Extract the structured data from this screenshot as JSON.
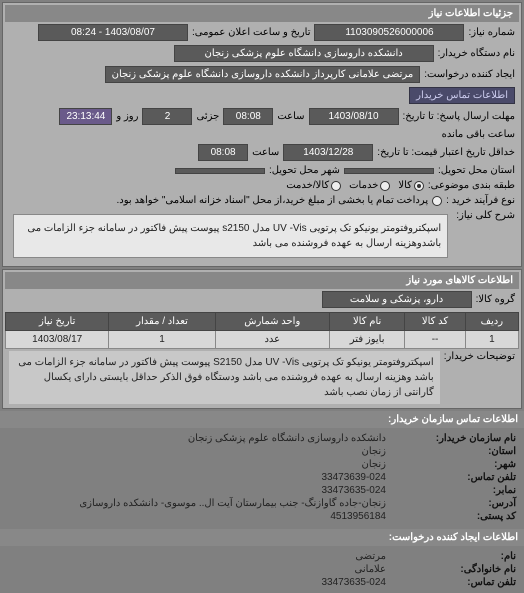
{
  "panel1": {
    "title": "جزئیات اطلاعات نیاز",
    "request_no_label": "شماره نیاز:",
    "request_no": "1103090526000006",
    "announce_label": "تاریخ و ساعت اعلان عمومی:",
    "announce_value": "1403/08/07 - 08:24",
    "buyer_name_label": "نام دستگاه خریدار:",
    "buyer_name": "دانشکده داروسازی دانشگاه علوم پزشکی زنجان",
    "requester_label": "ایجاد کننده درخواست:",
    "requester_value": "مرتضی علامانی کارپرداز دانشکده داروسازی دانشگاه علوم پزشکی زنجان",
    "contact_link": "اطلاعات تماس خریدار",
    "deadline_from_label": "مهلت ارسال پاسخ: تا تاریخ:",
    "deadline_from_date": "1403/08/10",
    "time_label": "ساعت",
    "deadline_from_time": "08:08",
    "partial_label": "جزئی",
    "days_label": "روز و",
    "days_value": "2",
    "remaining_label": "ساعت باقی مانده",
    "remaining_value": "23:13:44",
    "validity_to_label": "خداقل تاریخ اعتبار قیمت: تا تاریخ:",
    "validity_to_date": "1403/12/28",
    "validity_to_time": "08:08",
    "delivery_state_label": "استان محل تحویل:",
    "delivery_city_label": "شهر محل تحویل:",
    "package_label": "طبقه بندی موضوعی:",
    "radio_kala": "کالا",
    "radio_khadamat": "خدمات",
    "radio_both": "کالا/خدمت",
    "process_label": "نوع فرآیند خرید :",
    "process_note": "پرداخت تمام یا بخشی از مبلغ خرید،از محل \"اسناد خزانه اسلامی\" خواهد بود.",
    "general_label": "شرح کلی نیاز:",
    "general_desc": "اسپکتروفتومتر یونیکو تک پرتویی UV -Vis مدل s2150 پیوست پیش فاکتور در سامانه جزء الزامات می باشدوهزینه ارسال به عهده فروشنده می باشد"
  },
  "panel2": {
    "title": "اطلاعات کالاهای مورد نیاز",
    "group_label": "گروه کالا:",
    "group_value": "دارو، پزشکی و سلامت",
    "table": {
      "headers": [
        "ردیف",
        "کد کالا",
        "نام کالا",
        "واحد شمارش",
        "تعداد / مقدار",
        "تاریخ نیاز"
      ],
      "rows": [
        [
          "1",
          "--",
          "بایوز فتر",
          "عدد",
          "1",
          "1403/08/17"
        ]
      ]
    },
    "notes_label": "توضیحات خریدار:",
    "notes_value": "اسپکتروفتومتر یونیکو تک پرتویی UV -Vis مدل S2150 پیوست پیش فاکتور در سامانه جزء الزامات می باشد وهزینه ارسال به عهده فروشنده می باشد ودستگاه فوق الذکر حداقل بایستی دارای یکسال گارانتی از زمان نصب باشد"
  },
  "contact_buyer": {
    "title": "اطلاعات تماس سازمان خریدار:",
    "org_label": "نام سازمان خریدار:",
    "org_value": "دانشکده داروسازی دانشگاه علوم پزشکی زنجان",
    "state_label": "استان:",
    "state_value": "زنجان",
    "city_label": "شهر:",
    "city_value": "زنجان",
    "phone_label": "تلفن تماس:",
    "phone_value": "33473639-024",
    "fax_label": "نمابر:",
    "fax_value": "33473635-024",
    "address_label": "آدرس:",
    "address_value": "زنجان-جاده گاوازنگ- جنب بیمارستان آیت ال.. موسوی- دانشکده داروسازی",
    "postal_label": "کد پستی:",
    "postal_value": "4513956184"
  },
  "contact_requester": {
    "title": "اطلاعات ایجاد کننده درخواست:",
    "name_label": "نام:",
    "name_value": "مرتضی",
    "family_label": "نام خانوادگی:",
    "family_value": "علامانی",
    "phone_label": "تلفن تماس:",
    "phone_value": "33473635-024"
  }
}
